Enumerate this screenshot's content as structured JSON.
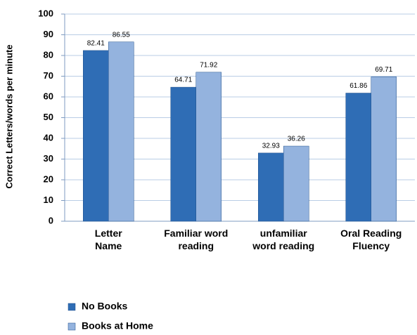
{
  "chart_data": {
    "type": "bar",
    "y_label": "Correct Letters/words per minute",
    "categories": [
      "Letter\nName",
      "Familiar word\nreading",
      "unfamiliar\nword reading",
      "Oral Reading\nFluency"
    ],
    "series": [
      {
        "name": "No Books",
        "color": "#2f6db5",
        "values": [
          82.41,
          64.71,
          32.93,
          61.86
        ]
      },
      {
        "name": "Books at Home",
        "color": "#94b3de",
        "values": [
          86.55,
          71.92,
          36.26,
          69.71
        ]
      }
    ],
    "ylim": [
      0,
      100
    ],
    "yticks": [
      0,
      10,
      20,
      30,
      40,
      50,
      60,
      70,
      80,
      90,
      100
    ],
    "grid": true
  }
}
